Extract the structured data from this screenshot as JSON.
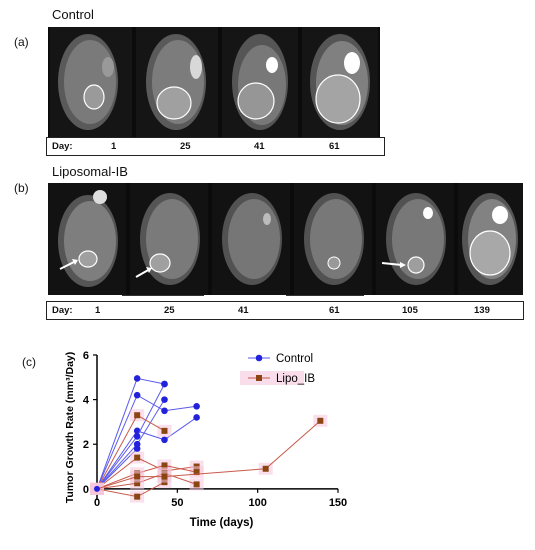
{
  "panel_a": {
    "label": "(a)",
    "title": "Control",
    "day_label": "Day:",
    "days": [
      "1",
      "25",
      "41",
      "61"
    ]
  },
  "panel_b": {
    "label": "(b)",
    "title": "Liposomal-IB",
    "day_label": "Day:",
    "days": [
      "1",
      "25",
      "41",
      "61",
      "105",
      "139"
    ]
  },
  "panel_c": {
    "label": "(c)",
    "chart_data": {
      "type": "line",
      "xlabel": "Time (days)",
      "ylabel": "Tumor Growth Rate (mm³/Day)",
      "xlim": [
        0,
        150
      ],
      "ylim": [
        -0.5,
        6
      ],
      "xticks": [
        0,
        50,
        100,
        150
      ],
      "yticks": [
        0,
        2,
        4,
        6
      ],
      "legend_position": "top-right",
      "series": [
        {
          "name": "Control",
          "color": "#2222dd",
          "marker": "circle",
          "curves": [
            [
              [
                0,
                0
              ],
              [
                25,
                4.95
              ],
              [
                42,
                4.7
              ]
            ],
            [
              [
                0,
                0
              ],
              [
                25,
                4.2
              ],
              [
                42,
                3.5
              ],
              [
                62,
                3.7
              ]
            ],
            [
              [
                0,
                0
              ],
              [
                25,
                2.6
              ],
              [
                42,
                2.2
              ],
              [
                62,
                3.2
              ]
            ],
            [
              [
                0,
                0
              ],
              [
                25,
                2.35
              ],
              [
                42,
                4.7
              ]
            ],
            [
              [
                0,
                0
              ],
              [
                25,
                2.0
              ],
              [
                42,
                4.0
              ]
            ],
            [
              [
                0,
                0
              ],
              [
                25,
                1.8
              ]
            ]
          ]
        },
        {
          "name": "Lipo_IB",
          "color": "#8b4513",
          "marker": "square",
          "curves": [
            [
              [
                0,
                0
              ],
              [
                25,
                3.3
              ],
              [
                42,
                2.6
              ]
            ],
            [
              [
                0,
                0
              ],
              [
                25,
                1.4
              ],
              [
                42,
                0.8
              ],
              [
                62,
                1.0
              ]
            ],
            [
              [
                0,
                0
              ],
              [
                25,
                0.7
              ],
              [
                42,
                1.05
              ],
              [
                62,
                0.75
              ]
            ],
            [
              [
                0,
                0
              ],
              [
                25,
                0.25
              ],
              [
                42,
                0.7
              ],
              [
                62,
                0.2
              ]
            ],
            [
              [
                0,
                0
              ],
              [
                25,
                -0.35
              ],
              [
                42,
                0.3
              ]
            ],
            [
              [
                0,
                0
              ],
              [
                25,
                0.55
              ],
              [
                42,
                0.55
              ],
              [
                105,
                0.9
              ],
              [
                139,
                3.05
              ]
            ]
          ]
        }
      ]
    }
  }
}
